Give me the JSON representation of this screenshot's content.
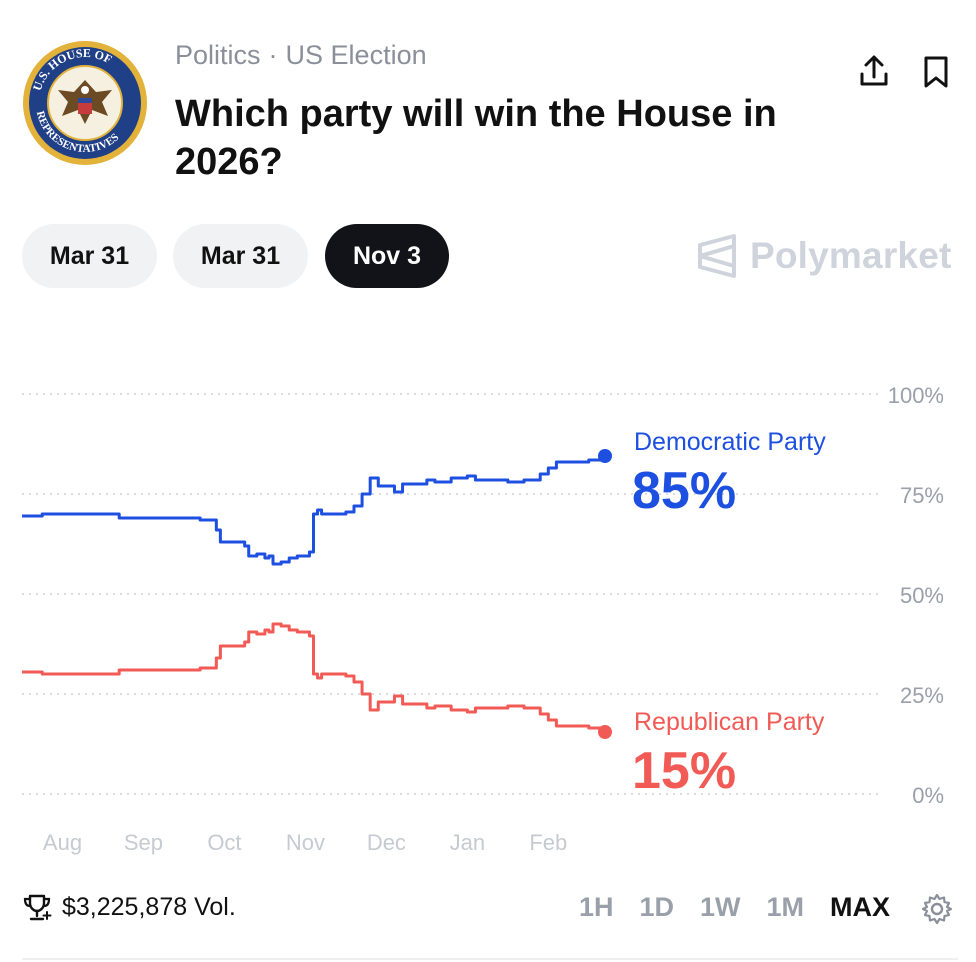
{
  "header": {
    "category": "Politics",
    "subcategory": "US Election",
    "title": "Which party will win the House in 2026?",
    "seal_text": "U.S. HOUSE OF REPRESENTATIVES"
  },
  "date_tabs": [
    {
      "label": "Mar 31",
      "active": false
    },
    {
      "label": "Mar 31",
      "active": false
    },
    {
      "label": "Nov 3",
      "active": true
    }
  ],
  "brand": "Polymarket",
  "chart_data": {
    "type": "line",
    "title": "",
    "xlabel": "",
    "ylabel": "",
    "ylim": [
      0,
      100
    ],
    "yticks": [
      0,
      25,
      50,
      75,
      100
    ],
    "ytick_labels": [
      "0%",
      "25%",
      "50%",
      "75%",
      "100%"
    ],
    "x_ticks": [
      "Aug",
      "Sep",
      "Oct",
      "Nov",
      "Dec",
      "Jan",
      "Feb"
    ],
    "x_tick_positions": [
      0.5,
      1.5,
      2.5,
      3.5,
      4.5,
      5.5,
      6.5
    ],
    "xlim": [
      0,
      7.2
    ],
    "grid": true,
    "series": [
      {
        "name": "Democratic Party",
        "color": "#1d4fe0",
        "current_label": "85%",
        "x": [
          0,
          0.25,
          0.5,
          1,
          1.2,
          1.6,
          2.2,
          2.4,
          2.45,
          2.6,
          2.75,
          2.8,
          2.9,
          3.0,
          3.05,
          3.1,
          3.2,
          3.3,
          3.4,
          3.55,
          3.6,
          3.65,
          3.7,
          3.8,
          3.9,
          4.0,
          4.1,
          4.2,
          4.3,
          4.4,
          4.5,
          4.6,
          4.7,
          4.9,
          5.0,
          5.1,
          5.3,
          5.5,
          5.6,
          5.75,
          6.0,
          6.2,
          6.4,
          6.5,
          6.6,
          6.8,
          7.0,
          7.2
        ],
        "values": [
          69.5,
          70,
          70,
          70,
          69,
          69,
          68.5,
          66,
          63,
          63,
          62,
          59.5,
          60,
          59,
          59.5,
          57.5,
          58,
          59,
          59.5,
          60.5,
          70,
          71,
          70,
          70,
          70,
          70.5,
          72,
          75,
          79,
          77,
          77,
          75.5,
          77.5,
          77.5,
          78.5,
          78,
          79,
          79.5,
          78.5,
          78.5,
          78,
          78.5,
          80,
          81.5,
          83,
          83,
          83.5,
          84.5
        ]
      },
      {
        "name": "Republican Party",
        "color": "#f25b55",
        "current_label": "15%",
        "x": [
          0,
          0.25,
          0.5,
          1,
          1.2,
          1.6,
          2.2,
          2.4,
          2.45,
          2.6,
          2.75,
          2.8,
          2.9,
          3.0,
          3.05,
          3.1,
          3.2,
          3.3,
          3.4,
          3.55,
          3.6,
          3.65,
          3.7,
          3.8,
          3.9,
          4.0,
          4.1,
          4.2,
          4.3,
          4.4,
          4.5,
          4.6,
          4.7,
          4.9,
          5.0,
          5.1,
          5.3,
          5.5,
          5.6,
          5.75,
          6.0,
          6.2,
          6.4,
          6.5,
          6.6,
          6.8,
          7.0,
          7.2
        ],
        "values": [
          30.5,
          30,
          30,
          30,
          31,
          31,
          31.5,
          34,
          37,
          37,
          38,
          40.5,
          40,
          41,
          40.5,
          42.5,
          42,
          41,
          40.5,
          39.5,
          30,
          29,
          30,
          30,
          30,
          29.5,
          28,
          25,
          21,
          23,
          23,
          24.5,
          22.5,
          22.5,
          21.5,
          22,
          21,
          20.5,
          21.5,
          21.5,
          22,
          21.5,
          20,
          18.5,
          17,
          17,
          16.5,
          15.5
        ]
      }
    ]
  },
  "footer": {
    "volume": "$3,225,878 Vol.",
    "ranges": [
      {
        "label": "1H",
        "active": false
      },
      {
        "label": "1D",
        "active": false
      },
      {
        "label": "1W",
        "active": false
      },
      {
        "label": "1M",
        "active": false
      },
      {
        "label": "MAX",
        "active": true
      }
    ]
  },
  "colors": {
    "democratic": "#1d4fe0",
    "republican": "#f25b55",
    "muted": "#9aa0aa",
    "grid": "#d9dce1"
  }
}
